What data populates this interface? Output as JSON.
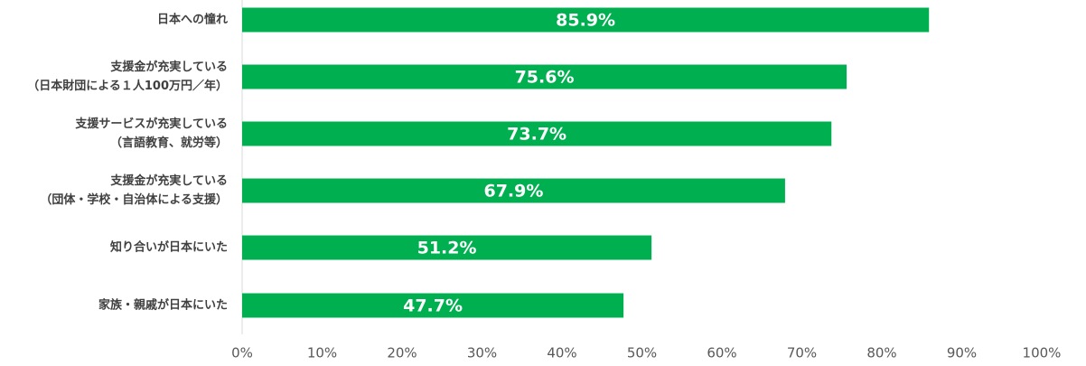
{
  "chart_data": {
    "type": "bar",
    "orientation": "horizontal",
    "categories": [
      [
        "日本への憧れ"
      ],
      [
        "支援金が充実している",
        "（日本財団による１人100万円／年）"
      ],
      [
        "支援サービスが充実している",
        "（言語教育、就労等）"
      ],
      [
        "支援金が充実している",
        "（団体・学校・自治体による支援）"
      ],
      [
        "知り合いが日本にいた"
      ],
      [
        "家族・親戚が日本にいた"
      ]
    ],
    "values": [
      85.9,
      75.6,
      73.7,
      67.9,
      51.2,
      47.7
    ],
    "data_labels": [
      "85.9%",
      "75.6%",
      "73.7%",
      "67.9%",
      "51.2%",
      "47.7%"
    ],
    "xlim": [
      0,
      100
    ],
    "xticks": [
      0,
      10,
      20,
      30,
      40,
      50,
      60,
      70,
      80,
      90,
      100
    ],
    "xtick_labels": [
      "0%",
      "10%",
      "20%",
      "30%",
      "40%",
      "50%",
      "60%",
      "70%",
      "80%",
      "90%",
      "100%"
    ],
    "grid": false,
    "bar_color": "#00B050",
    "axis_color": "#D9D9D9"
  }
}
